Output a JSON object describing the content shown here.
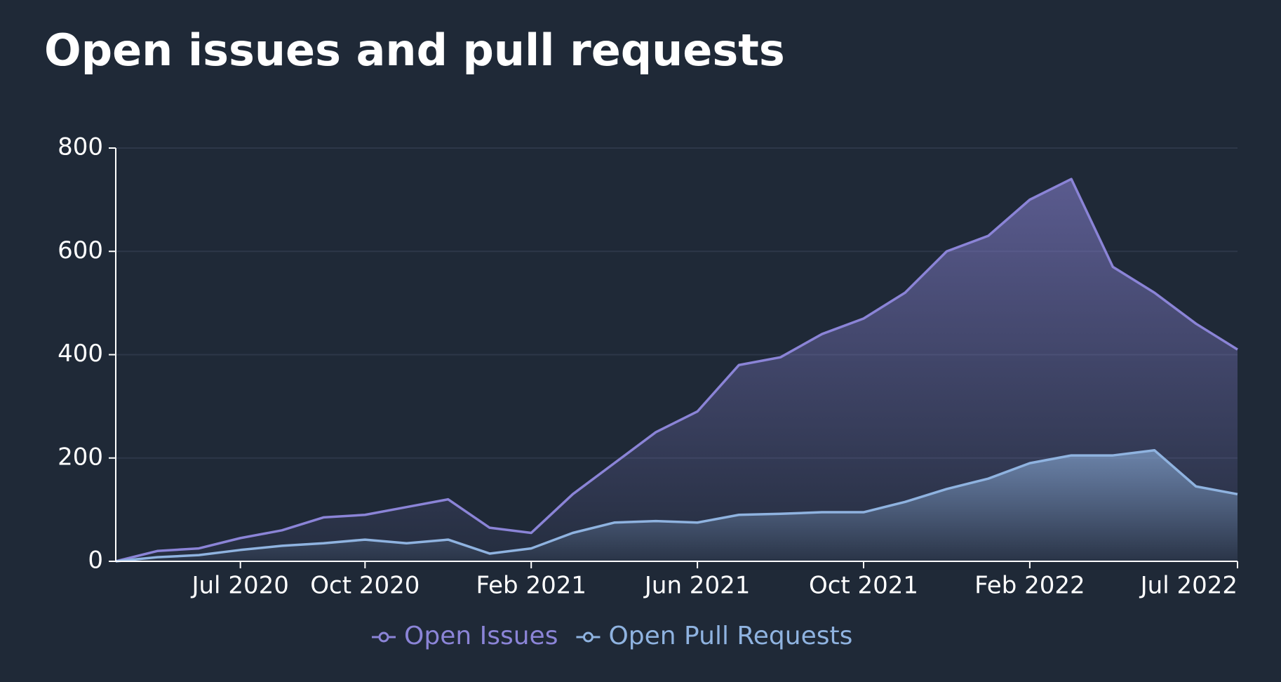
{
  "chart_data": {
    "type": "area-line",
    "title": "Open issues and pull requests",
    "x": [
      "2020-04",
      "2020-05",
      "2020-06",
      "2020-07",
      "2020-08",
      "2020-09",
      "2020-10",
      "2020-11",
      "2020-12",
      "2021-01",
      "2021-02",
      "2021-03",
      "2021-04",
      "2021-05",
      "2021-06",
      "2021-07",
      "2021-08",
      "2021-09",
      "2021-10",
      "2021-11",
      "2021-12",
      "2022-01",
      "2022-02",
      "2022-03",
      "2022-04",
      "2022-05",
      "2022-06",
      "2022-07"
    ],
    "series": [
      {
        "name": "Open Issues",
        "color": "#8b84d7",
        "values": [
          0,
          20,
          25,
          45,
          60,
          85,
          90,
          105,
          120,
          65,
          55,
          130,
          190,
          250,
          290,
          380,
          395,
          440,
          470,
          520,
          600,
          630,
          700,
          740,
          570,
          520,
          460,
          410
        ]
      },
      {
        "name": "Open Pull Requests",
        "color": "#8fb3e0",
        "values": [
          0,
          8,
          12,
          22,
          30,
          35,
          42,
          35,
          42,
          15,
          25,
          55,
          75,
          78,
          75,
          90,
          92,
          95,
          95,
          115,
          140,
          160,
          190,
          205,
          205,
          215,
          145,
          130
        ]
      }
    ],
    "xlim": [
      "2020-04",
      "2022-07"
    ],
    "xticks": [
      {
        "value": "2020-07",
        "label": "Jul 2020"
      },
      {
        "value": "2020-10",
        "label": "Oct 2020"
      },
      {
        "value": "2021-02",
        "label": "Feb 2021"
      },
      {
        "value": "2021-06",
        "label": "Jun 2021"
      },
      {
        "value": "2021-10",
        "label": "Oct 2021"
      },
      {
        "value": "2022-02",
        "label": "Feb 2022"
      },
      {
        "value": "2022-07",
        "label": "Jul 2022"
      }
    ],
    "ylim": [
      0,
      800
    ],
    "yticks": [
      0,
      200,
      400,
      600,
      800
    ],
    "grid": true,
    "legend": "bottom"
  }
}
